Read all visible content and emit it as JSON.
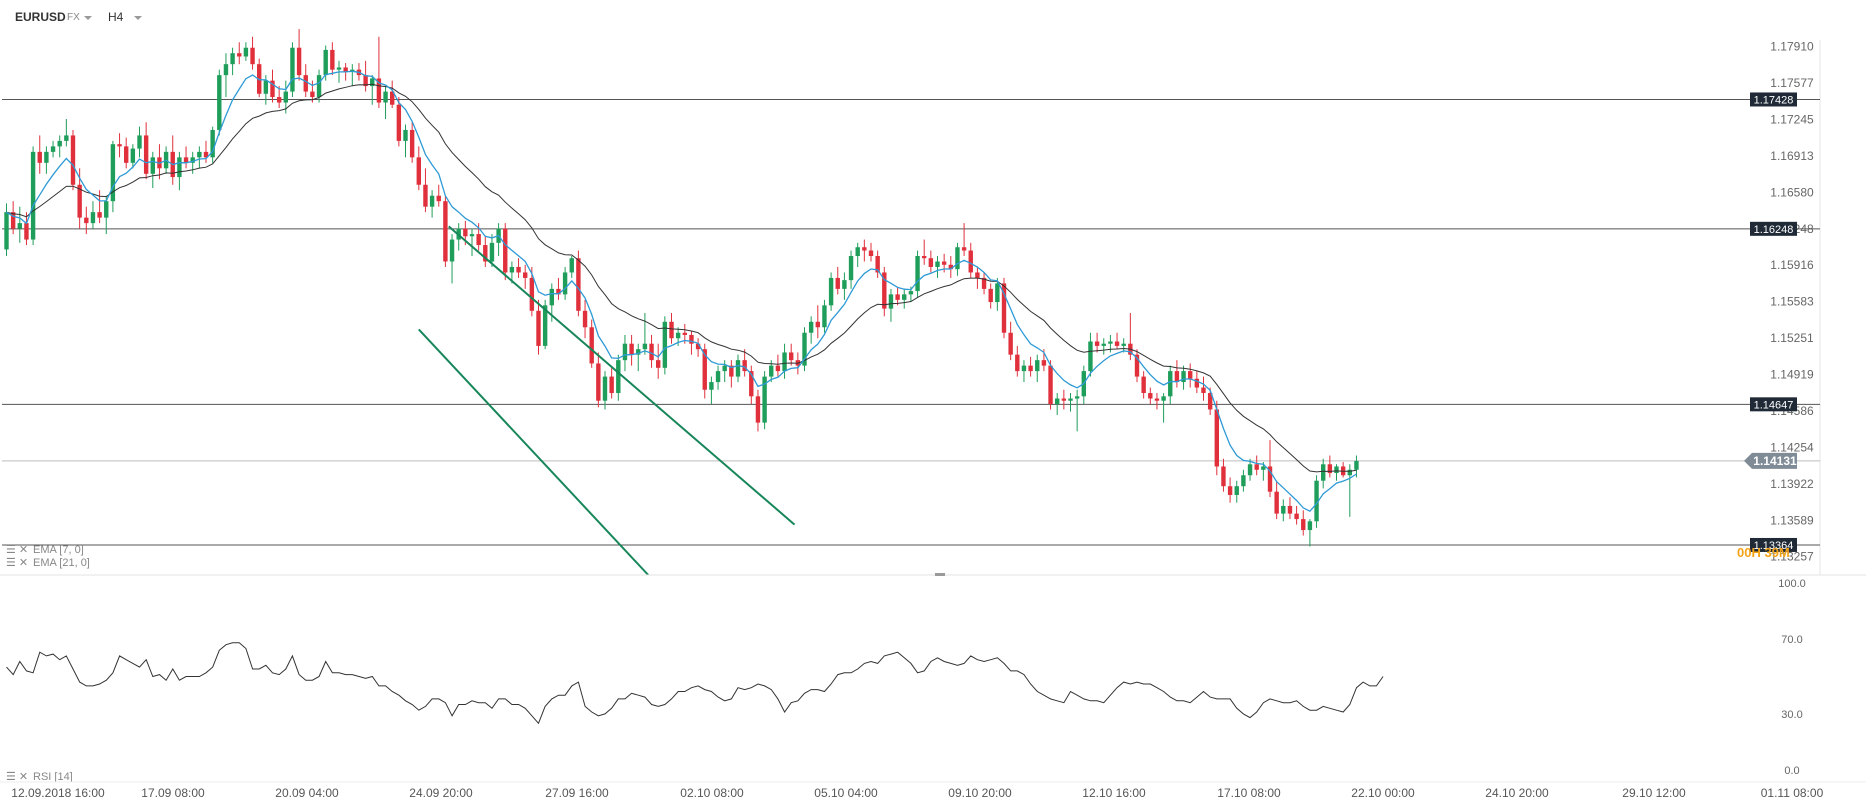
{
  "toolbar": {
    "symbol": "EURUSD",
    "market": "FX",
    "timeframe": "H4"
  },
  "price_axis_labels": [
    "1.17910",
    "1.17577",
    "1.17245",
    "1.16913",
    "1.16580",
    "1.16248",
    "1.15916",
    "1.15583",
    "1.15251",
    "1.14919",
    "1.14586",
    "1.14254",
    "1.13922",
    "1.13589",
    "1.13257"
  ],
  "hlines": [
    {
      "price": 1.17428,
      "label": "1.17428"
    },
    {
      "price": 1.16248,
      "label": "1.16248"
    },
    {
      "price": 1.14647,
      "label": "1.14647"
    },
    {
      "price": 1.13364,
      "label": "1.13364"
    }
  ],
  "current_price": {
    "value": 1.14131,
    "label": "1.14131"
  },
  "countdown": "00H 39M",
  "indicators": {
    "ema_fast": "EMA [7, 0]",
    "ema_slow": "EMA [21, 0]",
    "rsi": "RSI [14]"
  },
  "rsi_axis_labels": [
    "100.0",
    "70.0",
    "30.0",
    "0.0"
  ],
  "time_labels": [
    "12.09.2018  16:00",
    "17.09  08:00",
    "20.09  04:00",
    "24.09  20:00",
    "27.09  16:00",
    "02.10  08:00",
    "05.10  04:00",
    "09.10  20:00",
    "12.10  16:00",
    "17.10  08:00",
    "22.10  00:00",
    "24.10  20:00",
    "29.10  12:00",
    "01.11  08:00"
  ],
  "colors": {
    "bull": "#1e9e5a",
    "bear": "#e0303c",
    "ema_fast": "#2e9ad6",
    "ema_slow": "#333333",
    "channel": "#17865a",
    "label_bg": "#1f2a36"
  },
  "chart_data": {
    "type": "candlestick",
    "instrument": "EURUSD",
    "timeframe": "H4",
    "ylim": [
      1.1309,
      1.1808
    ],
    "channel": {
      "upper": {
        "from": [
          66.5,
          1.1627
        ],
        "to": [
          118.5,
          1.1355
        ]
      },
      "lower": {
        "from": [
          62,
          1.1533
        ],
        "to": [
          96.5,
          1.1309
        ]
      }
    },
    "ohlc": [
      [
        1.1606,
        1.1648,
        1.16,
        1.164
      ],
      [
        1.164,
        1.165,
        1.162,
        1.1625
      ],
      [
        1.1625,
        1.1645,
        1.1612,
        1.163
      ],
      [
        1.163,
        1.164,
        1.161,
        1.1615
      ],
      [
        1.1615,
        1.17,
        1.161,
        1.1695
      ],
      [
        1.1695,
        1.171,
        1.1675,
        1.1685
      ],
      [
        1.1685,
        1.17,
        1.1675,
        1.1695
      ],
      [
        1.1695,
        1.1705,
        1.169,
        1.17
      ],
      [
        1.17,
        1.171,
        1.169,
        1.1705
      ],
      [
        1.1705,
        1.1725,
        1.17,
        1.171
      ],
      [
        1.171,
        1.1715,
        1.166,
        1.1665
      ],
      [
        1.1665,
        1.168,
        1.1625,
        1.1635
      ],
      [
        1.1635,
        1.1645,
        1.162,
        1.163
      ],
      [
        1.163,
        1.165,
        1.1625,
        1.164
      ],
      [
        1.164,
        1.166,
        1.163,
        1.1635
      ],
      [
        1.1635,
        1.1655,
        1.162,
        1.165
      ],
      [
        1.165,
        1.1705,
        1.164,
        1.1702
      ],
      [
        1.1702,
        1.1712,
        1.169,
        1.17
      ],
      [
        1.17,
        1.1708,
        1.168,
        1.1685
      ],
      [
        1.1685,
        1.1702,
        1.168,
        1.1698
      ],
      [
        1.1698,
        1.1718,
        1.169,
        1.171
      ],
      [
        1.171,
        1.1722,
        1.167,
        1.1675
      ],
      [
        1.1675,
        1.1695,
        1.1662,
        1.169
      ],
      [
        1.169,
        1.1702,
        1.167,
        1.168
      ],
      [
        1.168,
        1.17,
        1.1675,
        1.1695
      ],
      [
        1.1695,
        1.171,
        1.1665,
        1.1672
      ],
      [
        1.1672,
        1.1695,
        1.166,
        1.169
      ],
      [
        1.169,
        1.17,
        1.168,
        1.1685
      ],
      [
        1.1685,
        1.1695,
        1.1675,
        1.169
      ],
      [
        1.169,
        1.17,
        1.168,
        1.1695
      ],
      [
        1.1695,
        1.1705,
        1.1685,
        1.169
      ],
      [
        1.169,
        1.1718,
        1.1685,
        1.1715
      ],
      [
        1.1715,
        1.177,
        1.171,
        1.1765
      ],
      [
        1.1765,
        1.1785,
        1.1745,
        1.1775
      ],
      [
        1.1775,
        1.179,
        1.1765,
        1.1785
      ],
      [
        1.1785,
        1.1795,
        1.1775,
        1.1782
      ],
      [
        1.1782,
        1.1795,
        1.1778,
        1.179
      ],
      [
        1.179,
        1.18,
        1.177,
        1.1775
      ],
      [
        1.1775,
        1.178,
        1.1745,
        1.1748
      ],
      [
        1.1748,
        1.1765,
        1.1738,
        1.176
      ],
      [
        1.176,
        1.177,
        1.174,
        1.1745
      ],
      [
        1.1745,
        1.1755,
        1.1735,
        1.174
      ],
      [
        1.174,
        1.176,
        1.173,
        1.175
      ],
      [
        1.175,
        1.1795,
        1.1745,
        1.179
      ],
      [
        1.179,
        1.1807,
        1.176,
        1.1765
      ],
      [
        1.1765,
        1.1775,
        1.1745,
        1.175
      ],
      [
        1.175,
        1.176,
        1.174,
        1.1745
      ],
      [
        1.1745,
        1.177,
        1.174,
        1.1765
      ],
      [
        1.1765,
        1.1792,
        1.176,
        1.1788
      ],
      [
        1.1788,
        1.1795,
        1.1765,
        1.177
      ],
      [
        1.177,
        1.1778,
        1.1758,
        1.1772
      ],
      [
        1.1772,
        1.1776,
        1.176,
        1.1768
      ],
      [
        1.1768,
        1.1775,
        1.1755,
        1.177
      ],
      [
        1.177,
        1.1776,
        1.176,
        1.1765
      ],
      [
        1.1765,
        1.1778,
        1.175,
        1.1755
      ],
      [
        1.1755,
        1.1765,
        1.1738,
        1.1762
      ],
      [
        1.1762,
        1.18,
        1.1735,
        1.174
      ],
      [
        1.174,
        1.1755,
        1.1725,
        1.175
      ],
      [
        1.175,
        1.176,
        1.1735,
        1.1738
      ],
      [
        1.1738,
        1.1745,
        1.17,
        1.1705
      ],
      [
        1.1705,
        1.172,
        1.169,
        1.1715
      ],
      [
        1.1715,
        1.1722,
        1.1685,
        1.169
      ],
      [
        1.169,
        1.17,
        1.166,
        1.1665
      ],
      [
        1.1665,
        1.168,
        1.164,
        1.1645
      ],
      [
        1.1645,
        1.166,
        1.1635,
        1.1655
      ],
      [
        1.1655,
        1.1665,
        1.1645,
        1.165
      ],
      [
        1.165,
        1.1655,
        1.159,
        1.1595
      ],
      [
        1.1595,
        1.162,
        1.1575,
        1.1615
      ],
      [
        1.1615,
        1.163,
        1.1605,
        1.1625
      ],
      [
        1.1625,
        1.1632,
        1.161,
        1.1618
      ],
      [
        1.1618,
        1.1625,
        1.16,
        1.162
      ],
      [
        1.162,
        1.163,
        1.1605,
        1.161
      ],
      [
        1.161,
        1.1618,
        1.159,
        1.1595
      ],
      [
        1.1595,
        1.162,
        1.159,
        1.1612
      ],
      [
        1.1612,
        1.163,
        1.16,
        1.1625
      ],
      [
        1.1625,
        1.163,
        1.1578,
        1.1585
      ],
      [
        1.1585,
        1.1595,
        1.1575,
        1.159
      ],
      [
        1.159,
        1.1598,
        1.158,
        1.1585
      ],
      [
        1.1585,
        1.1592,
        1.157,
        1.158
      ],
      [
        1.158,
        1.159,
        1.1545,
        1.155
      ],
      [
        1.155,
        1.156,
        1.151,
        1.1518
      ],
      [
        1.1518,
        1.156,
        1.1515,
        1.1555
      ],
      [
        1.1555,
        1.1575,
        1.154,
        1.157
      ],
      [
        1.157,
        1.158,
        1.156,
        1.1565
      ],
      [
        1.1565,
        1.159,
        1.156,
        1.1585
      ],
      [
        1.1585,
        1.16,
        1.158,
        1.1598
      ],
      [
        1.1598,
        1.1605,
        1.1545,
        1.155
      ],
      [
        1.155,
        1.156,
        1.1525,
        1.1535
      ],
      [
        1.1535,
        1.1542,
        1.1498,
        1.1502
      ],
      [
        1.1502,
        1.1512,
        1.1462,
        1.1468
      ],
      [
        1.1468,
        1.1495,
        1.146,
        1.149
      ],
      [
        1.149,
        1.1498,
        1.147,
        1.1475
      ],
      [
        1.1475,
        1.151,
        1.1468,
        1.1505
      ],
      [
        1.1505,
        1.1528,
        1.1495,
        1.152
      ],
      [
        1.152,
        1.1528,
        1.15,
        1.151
      ],
      [
        1.151,
        1.152,
        1.1495,
        1.1515
      ],
      [
        1.1515,
        1.1548,
        1.151,
        1.152
      ],
      [
        1.152,
        1.1528,
        1.1498,
        1.1505
      ],
      [
        1.1505,
        1.152,
        1.1488,
        1.1498
      ],
      [
        1.1498,
        1.1545,
        1.1492,
        1.154
      ],
      [
        1.154,
        1.1548,
        1.152,
        1.1525
      ],
      [
        1.1525,
        1.1535,
        1.1518,
        1.153
      ],
      [
        1.153,
        1.1538,
        1.152,
        1.1528
      ],
      [
        1.1528,
        1.1532,
        1.151,
        1.152
      ],
      [
        1.152,
        1.1525,
        1.1508,
        1.1515
      ],
      [
        1.1515,
        1.152,
        1.147,
        1.1478
      ],
      [
        1.1478,
        1.149,
        1.1465,
        1.1485
      ],
      [
        1.1485,
        1.15,
        1.1478,
        1.1495
      ],
      [
        1.1495,
        1.1505,
        1.1485,
        1.15
      ],
      [
        1.15,
        1.1505,
        1.148,
        1.149
      ],
      [
        1.149,
        1.151,
        1.1485,
        1.1505
      ],
      [
        1.1505,
        1.1515,
        1.149,
        1.1495
      ],
      [
        1.1495,
        1.15,
        1.1465,
        1.1472
      ],
      [
        1.1472,
        1.1478,
        1.144,
        1.1448
      ],
      [
        1.1448,
        1.1495,
        1.1442,
        1.149
      ],
      [
        1.149,
        1.1505,
        1.1485,
        1.15
      ],
      [
        1.15,
        1.151,
        1.149,
        1.1495
      ],
      [
        1.1495,
        1.152,
        1.1488,
        1.1512
      ],
      [
        1.1512,
        1.152,
        1.15,
        1.1505
      ],
      [
        1.1505,
        1.1512,
        1.1492,
        1.15
      ],
      [
        1.15,
        1.1535,
        1.1495,
        1.153
      ],
      [
        1.153,
        1.1545,
        1.152,
        1.154
      ],
      [
        1.154,
        1.1555,
        1.1525,
        1.1535
      ],
      [
        1.1535,
        1.156,
        1.153,
        1.1555
      ],
      [
        1.1555,
        1.1585,
        1.155,
        1.158
      ],
      [
        1.158,
        1.159,
        1.1565,
        1.157
      ],
      [
        1.157,
        1.1585,
        1.156,
        1.1578
      ],
      [
        1.1578,
        1.1605,
        1.157,
        1.16
      ],
      [
        1.16,
        1.1612,
        1.159,
        1.1608
      ],
      [
        1.1608,
        1.1615,
        1.1595,
        1.1605
      ],
      [
        1.1605,
        1.1612,
        1.1595,
        1.16
      ],
      [
        1.16,
        1.1605,
        1.158,
        1.1585
      ],
      [
        1.1585,
        1.159,
        1.1545,
        1.1552
      ],
      [
        1.1552,
        1.157,
        1.154,
        1.1565
      ],
      [
        1.1565,
        1.1572,
        1.1555,
        1.156
      ],
      [
        1.156,
        1.157,
        1.1552,
        1.1565
      ],
      [
        1.1565,
        1.1572,
        1.1558,
        1.1568
      ],
      [
        1.1568,
        1.1605,
        1.1562,
        1.16
      ],
      [
        1.16,
        1.1615,
        1.1592,
        1.1598
      ],
      [
        1.1598,
        1.1605,
        1.1585,
        1.159
      ],
      [
        1.159,
        1.16,
        1.158,
        1.1595
      ],
      [
        1.1595,
        1.1602,
        1.1585,
        1.1592
      ],
      [
        1.1592,
        1.16,
        1.158,
        1.1588
      ],
      [
        1.1588,
        1.1612,
        1.1582,
        1.1608
      ],
      [
        1.1608,
        1.163,
        1.16,
        1.1605
      ],
      [
        1.1605,
        1.1612,
        1.158,
        1.1585
      ],
      [
        1.1585,
        1.159,
        1.157,
        1.158
      ],
      [
        1.158,
        1.1585,
        1.1565,
        1.157
      ],
      [
        1.157,
        1.1575,
        1.1552,
        1.1558
      ],
      [
        1.1558,
        1.158,
        1.155,
        1.1575
      ],
      [
        1.1575,
        1.158,
        1.1525,
        1.153
      ],
      [
        1.153,
        1.154,
        1.1505,
        1.151
      ],
      [
        1.151,
        1.1518,
        1.149,
        1.1495
      ],
      [
        1.1495,
        1.1505,
        1.1485,
        1.15
      ],
      [
        1.15,
        1.1508,
        1.149,
        1.1495
      ],
      [
        1.1495,
        1.151,
        1.1485,
        1.1505
      ],
      [
        1.1505,
        1.1515,
        1.1495,
        1.15
      ],
      [
        1.15,
        1.1505,
        1.146,
        1.1465
      ],
      [
        1.1465,
        1.1475,
        1.1455,
        1.147
      ],
      [
        1.147,
        1.1478,
        1.146,
        1.1468
      ],
      [
        1.1468,
        1.1475,
        1.1458,
        1.147
      ],
      [
        1.147,
        1.1478,
        1.144,
        1.1472
      ],
      [
        1.1472,
        1.15,
        1.1465,
        1.1495
      ],
      [
        1.1495,
        1.153,
        1.149,
        1.1522
      ],
      [
        1.1522,
        1.153,
        1.1512,
        1.1518
      ],
      [
        1.1518,
        1.1525,
        1.151,
        1.152
      ],
      [
        1.152,
        1.1528,
        1.1512,
        1.1522
      ],
      [
        1.1522,
        1.153,
        1.1515,
        1.1518
      ],
      [
        1.1518,
        1.1525,
        1.1512,
        1.152
      ],
      [
        1.152,
        1.1548,
        1.1505,
        1.151
      ],
      [
        1.151,
        1.1515,
        1.1485,
        1.149
      ],
      [
        1.149,
        1.1495,
        1.147,
        1.1475
      ],
      [
        1.1475,
        1.148,
        1.1465,
        1.147
      ],
      [
        1.147,
        1.1475,
        1.146,
        1.1468
      ],
      [
        1.1468,
        1.1475,
        1.1448,
        1.1472
      ],
      [
        1.1472,
        1.15,
        1.1465,
        1.1495
      ],
      [
        1.1495,
        1.1505,
        1.148,
        1.1485
      ],
      [
        1.1485,
        1.15,
        1.1478,
        1.1495
      ],
      [
        1.1495,
        1.1502,
        1.148,
        1.1488
      ],
      [
        1.1488,
        1.1495,
        1.1475,
        1.148
      ],
      [
        1.148,
        1.149,
        1.1468,
        1.1475
      ],
      [
        1.1475,
        1.148,
        1.1455,
        1.146
      ],
      [
        1.146,
        1.1468,
        1.14,
        1.1408
      ],
      [
        1.1408,
        1.1415,
        1.1385,
        1.139
      ],
      [
        1.139,
        1.1398,
        1.1375,
        1.1382
      ],
      [
        1.1382,
        1.1395,
        1.1375,
        1.139
      ],
      [
        1.139,
        1.1405,
        1.1385,
        1.14
      ],
      [
        1.14,
        1.1415,
        1.1395,
        1.141
      ],
      [
        1.141,
        1.1418,
        1.14,
        1.1405
      ],
      [
        1.1405,
        1.1412,
        1.1395,
        1.1408
      ],
      [
        1.1408,
        1.1432,
        1.138,
        1.1385
      ],
      [
        1.1385,
        1.1395,
        1.136,
        1.1365
      ],
      [
        1.1365,
        1.1378,
        1.1358,
        1.1372
      ],
      [
        1.1372,
        1.138,
        1.136,
        1.1365
      ],
      [
        1.1365,
        1.1372,
        1.1355,
        1.136
      ],
      [
        1.136,
        1.1368,
        1.1345,
        1.135
      ],
      [
        1.135,
        1.136,
        1.1335,
        1.1358
      ],
      [
        1.1358,
        1.14,
        1.1352,
        1.1395
      ],
      [
        1.1395,
        1.1415,
        1.1388,
        1.141
      ],
      [
        1.141,
        1.1418,
        1.1398,
        1.1402
      ],
      [
        1.1402,
        1.141,
        1.1395,
        1.1408
      ],
      [
        1.1408,
        1.1412,
        1.1398,
        1.14
      ],
      [
        1.14,
        1.141,
        1.1362,
        1.1405
      ],
      [
        1.1405,
        1.1418,
        1.1398,
        1.1413
      ]
    ],
    "rsi": [
      55,
      51,
      58,
      53,
      52,
      63,
      61,
      62,
      59,
      61,
      54,
      47,
      45,
      45,
      46,
      48,
      52,
      61,
      59,
      57,
      55,
      59,
      50,
      51,
      48,
      54,
      48,
      50,
      50,
      50,
      52,
      55,
      64,
      67,
      68,
      68,
      65,
      54,
      54,
      56,
      52,
      51,
      54,
      61,
      51,
      48,
      48,
      50,
      58,
      52,
      52,
      51,
      51,
      50,
      49,
      50,
      45,
      45,
      42,
      40,
      37,
      35,
      32,
      34,
      38,
      38,
      36,
      29,
      35,
      35,
      37,
      36,
      36,
      33,
      38,
      38,
      35,
      35,
      33,
      29,
      25,
      34,
      38,
      40,
      40,
      45,
      47,
      34,
      31,
      29,
      30,
      33,
      38,
      38,
      41,
      40,
      39,
      35,
      34,
      35,
      38,
      42,
      42,
      44,
      45,
      43,
      42,
      39,
      37,
      38,
      44,
      43,
      44,
      46,
      45,
      43,
      38,
      31,
      36,
      37,
      41,
      43,
      43,
      42,
      46,
      51,
      52,
      52,
      54,
      57,
      58,
      57,
      61,
      62,
      63,
      60,
      57,
      52,
      53,
      58,
      60,
      58,
      57,
      56,
      57,
      61,
      59,
      58,
      59,
      60,
      57,
      53,
      53,
      51,
      46,
      42,
      40,
      38,
      37,
      36,
      42,
      40,
      38,
      37,
      37,
      36,
      40,
      44,
      47,
      46,
      47,
      46,
      46,
      44,
      42,
      39,
      37,
      37,
      36,
      39,
      42,
      39,
      38,
      38,
      38,
      33,
      30,
      28,
      31,
      36,
      38,
      37,
      36,
      36,
      37,
      34,
      32,
      32,
      34,
      33,
      32,
      31,
      35,
      44,
      47,
      45,
      45,
      50
    ]
  }
}
